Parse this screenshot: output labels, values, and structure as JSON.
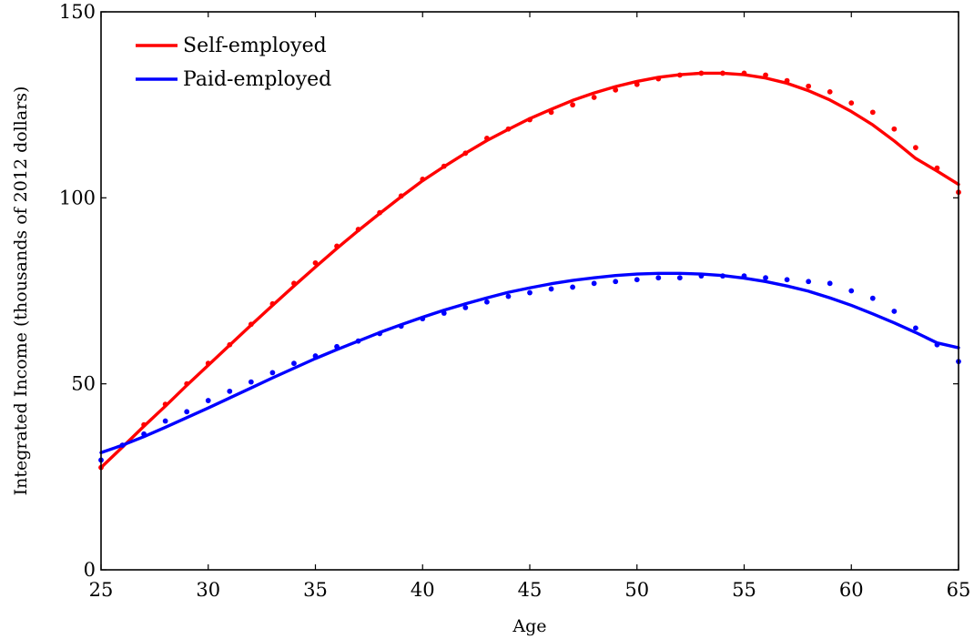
{
  "chart_data": {
    "type": "line",
    "xlabel": "Age",
    "ylabel": "Integrated Income (thousands of 2012 dollars)",
    "xlim": [
      25,
      65
    ],
    "ylim": [
      0,
      150
    ],
    "xticks": [
      25,
      30,
      35,
      40,
      45,
      50,
      55,
      60,
      65
    ],
    "yticks": [
      0,
      50,
      100,
      150
    ],
    "legend_position": "top-left",
    "grid": false,
    "series": [
      {
        "name": "Self-employed",
        "color": "#ff0000",
        "fit_x": [
          25,
          26,
          27,
          28,
          29,
          30,
          31,
          32,
          33,
          34,
          35,
          36,
          37,
          38,
          39,
          40,
          41,
          42,
          43,
          44,
          45,
          46,
          47,
          48,
          49,
          50,
          51,
          52,
          53,
          54,
          55,
          56,
          57,
          58,
          59,
          60,
          61,
          62,
          63,
          64,
          65
        ],
        "fit_y": [
          27.5,
          33.0,
          38.6,
          44.0,
          49.6,
          55.0,
          60.4,
          65.8,
          71.1,
          76.3,
          81.4,
          86.4,
          91.2,
          95.8,
          100.3,
          104.6,
          108.4,
          112.0,
          115.4,
          118.4,
          121.3,
          123.8,
          126.2,
          128.2,
          129.9,
          131.3,
          132.4,
          133.1,
          133.5,
          133.5,
          133.1,
          132.2,
          130.8,
          128.8,
          126.3,
          123.2,
          119.6,
          115.3,
          110.6,
          107.2,
          103.6
        ],
        "points_x": [
          25,
          26,
          27,
          28,
          29,
          30,
          31,
          32,
          33,
          34,
          35,
          36,
          37,
          38,
          39,
          40,
          41,
          42,
          43,
          44,
          45,
          46,
          47,
          48,
          49,
          50,
          51,
          52,
          53,
          54,
          55,
          56,
          57,
          58,
          59,
          60,
          61,
          62,
          63,
          64,
          65
        ],
        "points_y": [
          27.5,
          33.5,
          39.0,
          44.5,
          50.0,
          55.5,
          60.5,
          66.0,
          71.5,
          77.0,
          82.5,
          87.0,
          91.5,
          96.0,
          100.5,
          105.0,
          108.5,
          112.0,
          116.0,
          118.5,
          121.0,
          123.0,
          125.0,
          127.0,
          129.0,
          130.5,
          132.0,
          133.0,
          133.5,
          133.5,
          133.5,
          133.0,
          131.5,
          130.0,
          128.5,
          125.5,
          123.0,
          118.5,
          113.5,
          108.0,
          101.5
        ]
      },
      {
        "name": "Paid-employed",
        "color": "#0000ff",
        "fit_x": [
          25,
          26,
          27,
          28,
          29,
          30,
          31,
          32,
          33,
          34,
          35,
          36,
          37,
          38,
          39,
          40,
          41,
          42,
          43,
          44,
          45,
          46,
          47,
          48,
          49,
          50,
          51,
          52,
          53,
          54,
          55,
          56,
          57,
          58,
          59,
          60,
          61,
          62,
          63,
          64,
          65
        ],
        "fit_y": [
          31.5,
          33.5,
          35.8,
          38.3,
          40.9,
          43.5,
          46.2,
          48.9,
          51.6,
          54.2,
          56.8,
          59.2,
          61.5,
          63.8,
          65.9,
          67.9,
          69.8,
          71.5,
          73.1,
          74.6,
          75.8,
          76.9,
          77.8,
          78.5,
          79.1,
          79.5,
          79.7,
          79.7,
          79.5,
          79.1,
          78.4,
          77.5,
          76.3,
          74.9,
          73.1,
          71.1,
          68.8,
          66.4,
          63.8,
          61.0,
          59.7
        ],
        "points_x": [
          25,
          26,
          27,
          28,
          29,
          30,
          31,
          32,
          33,
          34,
          35,
          36,
          37,
          38,
          39,
          40,
          41,
          42,
          43,
          44,
          45,
          46,
          47,
          48,
          49,
          50,
          51,
          52,
          53,
          54,
          55,
          56,
          57,
          58,
          59,
          60,
          61,
          62,
          63,
          64,
          65
        ],
        "points_y": [
          29.5,
          33.5,
          36.5,
          40.0,
          42.5,
          45.5,
          48.0,
          50.5,
          53.0,
          55.5,
          57.5,
          60.0,
          61.5,
          63.5,
          65.5,
          67.5,
          69.0,
          70.5,
          72.0,
          73.5,
          74.5,
          75.5,
          76.0,
          77.0,
          77.5,
          78.0,
          78.5,
          78.5,
          79.0,
          79.0,
          79.0,
          78.5,
          78.0,
          77.5,
          77.0,
          75.0,
          73.0,
          69.5,
          65.0,
          60.5,
          56.0
        ]
      }
    ]
  }
}
